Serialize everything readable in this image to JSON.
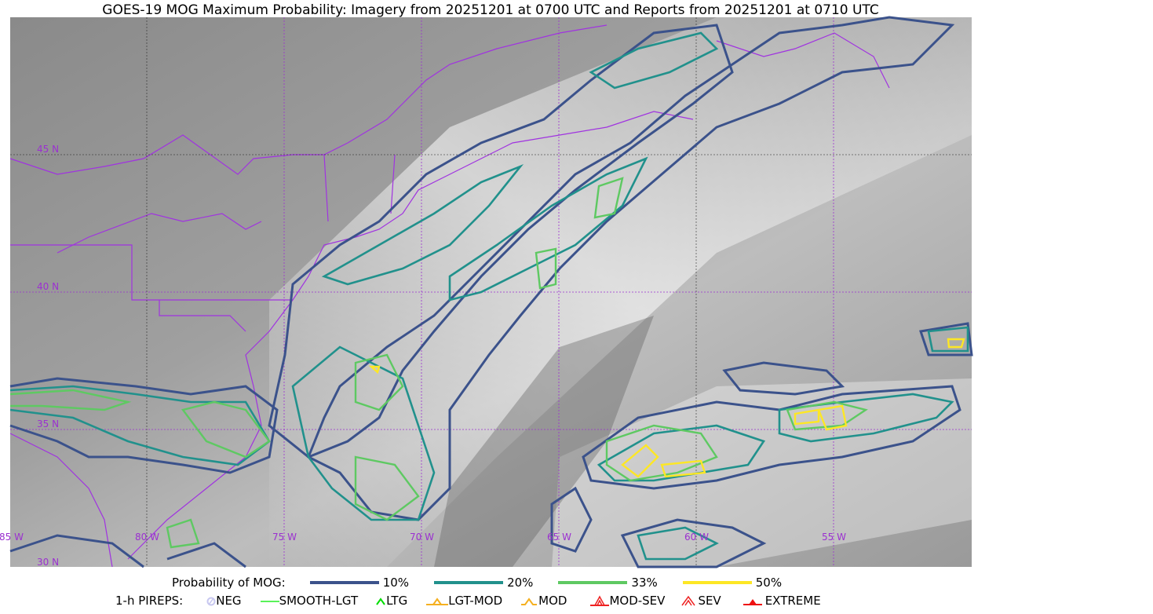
{
  "title": "GOES-19 MOG Maximum Probability: Imagery from 20251201 at 0700 UTC and Reports from 20251201 at 0710 UTC",
  "map": {
    "lon_labels": [
      "85 W",
      "80 W",
      "75 W",
      "70 W",
      "65 W",
      "60 W",
      "55 W"
    ],
    "lat_labels": [
      "45 N",
      "40 N",
      "35 N",
      "30 N"
    ],
    "grid_color": "#9b30d0",
    "border_color": "#a033e0"
  },
  "legend": {
    "probability_title": "Probability of MOG:",
    "probability_levels": [
      {
        "label": "10%",
        "color": "#3b528b"
      },
      {
        "label": "20%",
        "color": "#21918c"
      },
      {
        "label": "33%",
        "color": "#5ec962"
      },
      {
        "label": "50%",
        "color": "#fde725"
      }
    ],
    "pireps_title": "1-h PIREPS:",
    "pireps": [
      {
        "label": "NEG",
        "icon": "neg-circle-icon",
        "color": "#c8c8f0"
      },
      {
        "label": "SMOOTH-LGT",
        "icon": "line-icon",
        "color": "#22ee22"
      },
      {
        "label": "LTG",
        "icon": "caret-icon",
        "color": "#00dd00"
      },
      {
        "label": "LGT-MOD",
        "icon": "caret-bar-icon",
        "color": "#f5b020"
      },
      {
        "label": "MOD",
        "icon": "caret-icon",
        "color": "#f5b020"
      },
      {
        "label": "MOD-SEV",
        "icon": "double-caret-bar-icon",
        "color": "#ee2222"
      },
      {
        "label": "SEV",
        "icon": "double-caret-icon",
        "color": "#ee2222"
      },
      {
        "label": "EXTREME",
        "icon": "filled-triangle-icon",
        "color": "#ee1111"
      }
    ]
  }
}
